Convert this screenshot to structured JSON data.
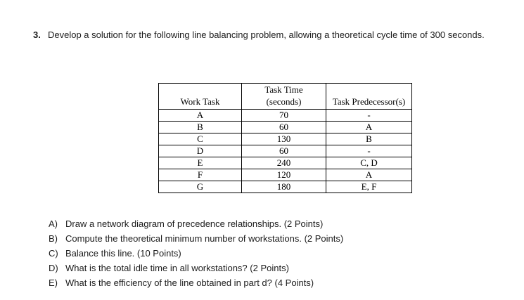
{
  "problem": {
    "number": "3.",
    "text": "Develop a solution for the following line balancing problem, allowing a theoretical cycle time of 300 seconds."
  },
  "table": {
    "columns": [
      {
        "header": [
          "Work Task"
        ]
      },
      {
        "header": [
          "Task Time",
          "(seconds)"
        ]
      },
      {
        "header": [
          "Task Predecessor(s)"
        ]
      }
    ],
    "rows": [
      {
        "task": "A",
        "time": "70",
        "predecessors": "-"
      },
      {
        "task": "B",
        "time": "60",
        "predecessors": "A"
      },
      {
        "task": "C",
        "time": "130",
        "predecessors": "B"
      },
      {
        "task": "D",
        "time": "60",
        "predecessors": "-"
      },
      {
        "task": "E",
        "time": "240",
        "predecessors": "C, D"
      },
      {
        "task": "F",
        "time": "120",
        "predecessors": "A"
      },
      {
        "task": "G",
        "time": "180",
        "predecessors": "E, F"
      }
    ]
  },
  "questions": [
    {
      "label": "A)",
      "text": "Draw a network diagram of precedence relationships. (2 Points)"
    },
    {
      "label": "B)",
      "text": "Compute the theoretical minimum number of workstations. (2 Points)"
    },
    {
      "label": "C)",
      "text": "Balance this line. (10 Points)"
    },
    {
      "label": "D)",
      "text": "What is the total idle time in all workstations? (2 Points)"
    },
    {
      "label": "E)",
      "text": "What is the efficiency of the line obtained in part d? (4 Points)"
    }
  ]
}
